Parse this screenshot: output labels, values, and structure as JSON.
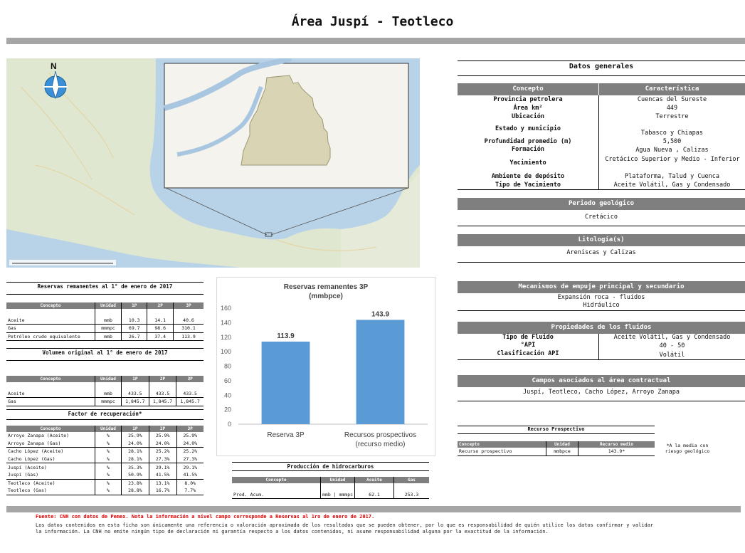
{
  "title": "Área Juspí - Teotleco",
  "map": {
    "north_label": "N",
    "icon": "north-arrow-icon"
  },
  "datos_generales": {
    "title": "Datos generales",
    "col_concepto": "Concepto",
    "col_caracteristica": "Característica",
    "rows": [
      {
        "label": "Provincia petrolera",
        "value": "Cuencas del Sureste"
      },
      {
        "label": "Área km²",
        "value": "449"
      },
      {
        "label": "Ubicación",
        "value": "Terrestre"
      },
      {
        "label": "Estado y municipio",
        "value": "Tabasco y Chiapas"
      },
      {
        "label": "Profundidad promedio (m)",
        "value": "5,500"
      },
      {
        "label": "Formación",
        "value": "Agua Nueva , Calizas"
      },
      {
        "label": "Yacimiento",
        "value": "Cretácico Superior y Medio - Inferior"
      },
      {
        "label": "Ambiente de depósito",
        "value": "Plataforma, Talud y Cuenca"
      },
      {
        "label": "Tipo de Yacimiento",
        "value": "Aceite Volátil, Gas y Condensado"
      }
    ]
  },
  "periodo": {
    "title": "Periodo geológico",
    "value": "Cretácico"
  },
  "litologia": {
    "title": "Litología(s)",
    "value": "Areniscas y Calizas"
  },
  "mecanismos": {
    "title": "Mecanismos de empuje principal y secundario",
    "line1": "Expansión roca - fluidos",
    "line2": "Hidráulico"
  },
  "fluidos": {
    "title": "Propiedades de los fluidos",
    "rows": [
      {
        "label": "Tipo de Fluido",
        "value": "Aceite Volátil, Gas y Condensado"
      },
      {
        "label": "°API",
        "value": "40 - 50"
      },
      {
        "label": "Clasificación API",
        "value": "Volátil"
      }
    ]
  },
  "campos": {
    "title": "Campos asociados al área contractual",
    "value": "Juspí, Teotleco, Cacho López, Arroyo Zanapa"
  },
  "reservas": {
    "title": "Reservas remanentes al 1° de enero de 2017",
    "headers": [
      "Concepto",
      "Unidad",
      "1P",
      "2P",
      "3P"
    ],
    "rows": [
      [
        "Aceite",
        "mmb",
        "10.3",
        "14.1",
        "40.6"
      ],
      [
        "Gas",
        "mmmpc",
        "69.7",
        "98.6",
        "310.1"
      ],
      [
        "Petróleo crudo equivalente",
        "mmb",
        "26.7",
        "37.4",
        "113.9"
      ]
    ]
  },
  "volumen": {
    "title": "Volumen original al 1° de enero de 2017",
    "headers": [
      "Concepto",
      "Unidad",
      "1P",
      "2P",
      "3P"
    ],
    "rows": [
      [
        "Aceite",
        "mmb",
        "433.5",
        "433.5",
        "433.5"
      ],
      [
        "Gas",
        "mmmpc",
        "1,845.7",
        "1,845.7",
        "1,845.7"
      ]
    ]
  },
  "factor": {
    "title": "Factor de recuperación*",
    "headers": [
      "Concepto",
      "Unidad",
      "1P",
      "2P",
      "3P"
    ],
    "rows": [
      [
        "Arroyo Zanapa (Aceite)",
        "%",
        "25.9%",
        "25.9%",
        "25.9%"
      ],
      [
        "Arroyo Zanapa (Gas)",
        "%",
        "24.0%",
        "24.0%",
        "24.0%"
      ],
      [
        "Cacho López (Aceite)",
        "%",
        "28.1%",
        "25.2%",
        "25.2%"
      ],
      [
        "Cacho López (Gas)",
        "%",
        "28.1%",
        "27.3%",
        "27.3%"
      ],
      [
        "Juspí (Aceite)",
        "%",
        "35.3%",
        "29.1%",
        "29.1%"
      ],
      [
        "Juspí (Gas)",
        "%",
        "50.9%",
        "41.5%",
        "41.5%"
      ],
      [
        "Teotleco (Aceite)",
        "%",
        "23.8%",
        "13.1%",
        "8.0%"
      ],
      [
        "Teotleco (Gas)",
        "%",
        "28.8%",
        "16.7%",
        "7.7%"
      ]
    ]
  },
  "produccion": {
    "title": "Producción de hidrocarburos",
    "headers": [
      "Concepto",
      "Unidad",
      "Aceite",
      "Gas"
    ],
    "row": [
      "Prod. Acum.",
      "mmb | mmmpc",
      "62.1",
      "253.3"
    ]
  },
  "recurso": {
    "title": "Recurso Prospectivo",
    "headers": [
      "Concepto",
      "Unidad",
      "Recurso medio"
    ],
    "row": [
      "Recurso prospectivo",
      "mmbpce",
      "143.9*"
    ],
    "note": "*A la media con riesgo geológico"
  },
  "chart_data": {
    "type": "bar",
    "title": "Reservas remanentes 3P",
    "subtitle": "(mmbpce)",
    "categories": [
      "Reserva 3P",
      "Recursos prospectivos (recurso medio)"
    ],
    "category_lines": [
      [
        "Reserva 3P"
      ],
      [
        "Recursos prospectivos",
        "(recurso medio)"
      ]
    ],
    "values": [
      113.9,
      143.9
    ],
    "value_labels": [
      "113.9",
      "143.9"
    ],
    "ylim": [
      0,
      160
    ],
    "yticks": [
      "0",
      "20",
      "40",
      "60",
      "80",
      "100",
      "120",
      "140",
      "160"
    ],
    "grid": false,
    "bar_color": "#5b9bd5"
  },
  "footer": {
    "source": "Fuente: CNH con datos de Pemex. Nota la información a nivel campo corresponde a Reservas al 1ro de enero de 2017.",
    "line1": "Los datos contenidos en esta ficha son únicamente una referencia o valoración aproximada de los resultados que se pueden obtener, por lo que es responsabilidad de quién utilice los datos confirmar y validar",
    "line2": "la información. La CNH no emite ningún tipo de declaración ni garantía respecto a los datos contenidos, ni asume responsabilidad alguna por la exactitud de la información."
  }
}
